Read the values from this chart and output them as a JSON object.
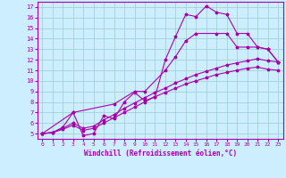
{
  "xlabel": "Windchill (Refroidissement éolien,°C)",
  "background_color": "#cceeff",
  "line_color": "#aa00aa",
  "grid_color": "#99cccc",
  "x_ticks": [
    0,
    1,
    2,
    3,
    4,
    5,
    6,
    7,
    8,
    9,
    10,
    11,
    12,
    13,
    14,
    15,
    16,
    17,
    18,
    19,
    20,
    21,
    22,
    23
  ],
  "y_ticks": [
    5,
    6,
    7,
    8,
    9,
    10,
    11,
    12,
    13,
    14,
    15,
    16,
    17
  ],
  "ylim": [
    4.5,
    17.5
  ],
  "xlim": [
    -0.5,
    23.5
  ],
  "line1_x": [
    0,
    1,
    2,
    3,
    4,
    5,
    6,
    7,
    8,
    9,
    10,
    11,
    12,
    13,
    14,
    15,
    16,
    17,
    18,
    19,
    20,
    21,
    22,
    23
  ],
  "line1_y": [
    5.0,
    5.1,
    5.6,
    7.0,
    4.8,
    5.0,
    6.7,
    6.4,
    8.0,
    8.9,
    8.1,
    8.5,
    12.0,
    14.2,
    16.3,
    16.1,
    17.1,
    16.5,
    16.3,
    14.5,
    14.5,
    13.2,
    13.0,
    11.8
  ],
  "line2_x": [
    0,
    3,
    7,
    9,
    10,
    12,
    13,
    14,
    15,
    17,
    18,
    19,
    20,
    21,
    22,
    23
  ],
  "line2_y": [
    5.0,
    7.0,
    7.8,
    9.0,
    9.0,
    11.0,
    12.3,
    13.8,
    14.5,
    14.5,
    14.5,
    13.2,
    13.2,
    13.2,
    13.0,
    11.8
  ],
  "line3_x": [
    0,
    1,
    2,
    3,
    4,
    5,
    6,
    7,
    8,
    9,
    10,
    11,
    12,
    13,
    14,
    15,
    16,
    17,
    18,
    19,
    20,
    21,
    22,
    23
  ],
  "line3_y": [
    5.0,
    5.1,
    5.5,
    6.0,
    5.5,
    5.7,
    6.3,
    6.8,
    7.4,
    7.9,
    8.4,
    8.9,
    9.3,
    9.8,
    10.2,
    10.6,
    10.9,
    11.2,
    11.5,
    11.7,
    11.9,
    12.1,
    11.9,
    11.8
  ],
  "line4_x": [
    0,
    1,
    2,
    3,
    4,
    5,
    6,
    7,
    8,
    9,
    10,
    11,
    12,
    13,
    14,
    15,
    16,
    17,
    18,
    19,
    20,
    21,
    22,
    23
  ],
  "line4_y": [
    5.0,
    5.1,
    5.4,
    5.8,
    5.3,
    5.5,
    6.0,
    6.5,
    7.0,
    7.5,
    8.0,
    8.5,
    8.9,
    9.3,
    9.7,
    10.0,
    10.3,
    10.6,
    10.8,
    11.0,
    11.2,
    11.3,
    11.1,
    11.0
  ]
}
